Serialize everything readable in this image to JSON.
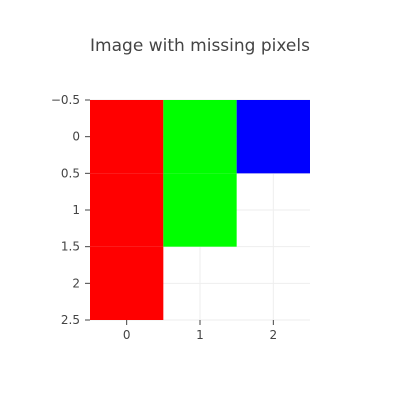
{
  "chart_data": {
    "type": "heatmap",
    "title": "Image with missing pixels",
    "xlabel": "",
    "ylabel": "",
    "x_ticks": [
      "0",
      "1",
      "2"
    ],
    "y_ticks": [
      "−0.5",
      "0",
      "0.5",
      "1",
      "1.5",
      "2",
      "2.5"
    ],
    "xlim": [
      -0.5,
      2.5
    ],
    "ylim": [
      2.5,
      -0.5
    ],
    "y_reversed": true,
    "grid": true,
    "pixels": [
      {
        "x": 0,
        "y": 0,
        "color": "#ff0000"
      },
      {
        "x": 1,
        "y": 0,
        "color": "#00ff00"
      },
      {
        "x": 2,
        "y": 0,
        "color": "#0000ff"
      },
      {
        "x": 0,
        "y": 1,
        "color": "#ff0000"
      },
      {
        "x": 1,
        "y": 1,
        "color": "#00ff00"
      },
      {
        "x": 0,
        "y": 2,
        "color": "#ff0000"
      }
    ]
  }
}
